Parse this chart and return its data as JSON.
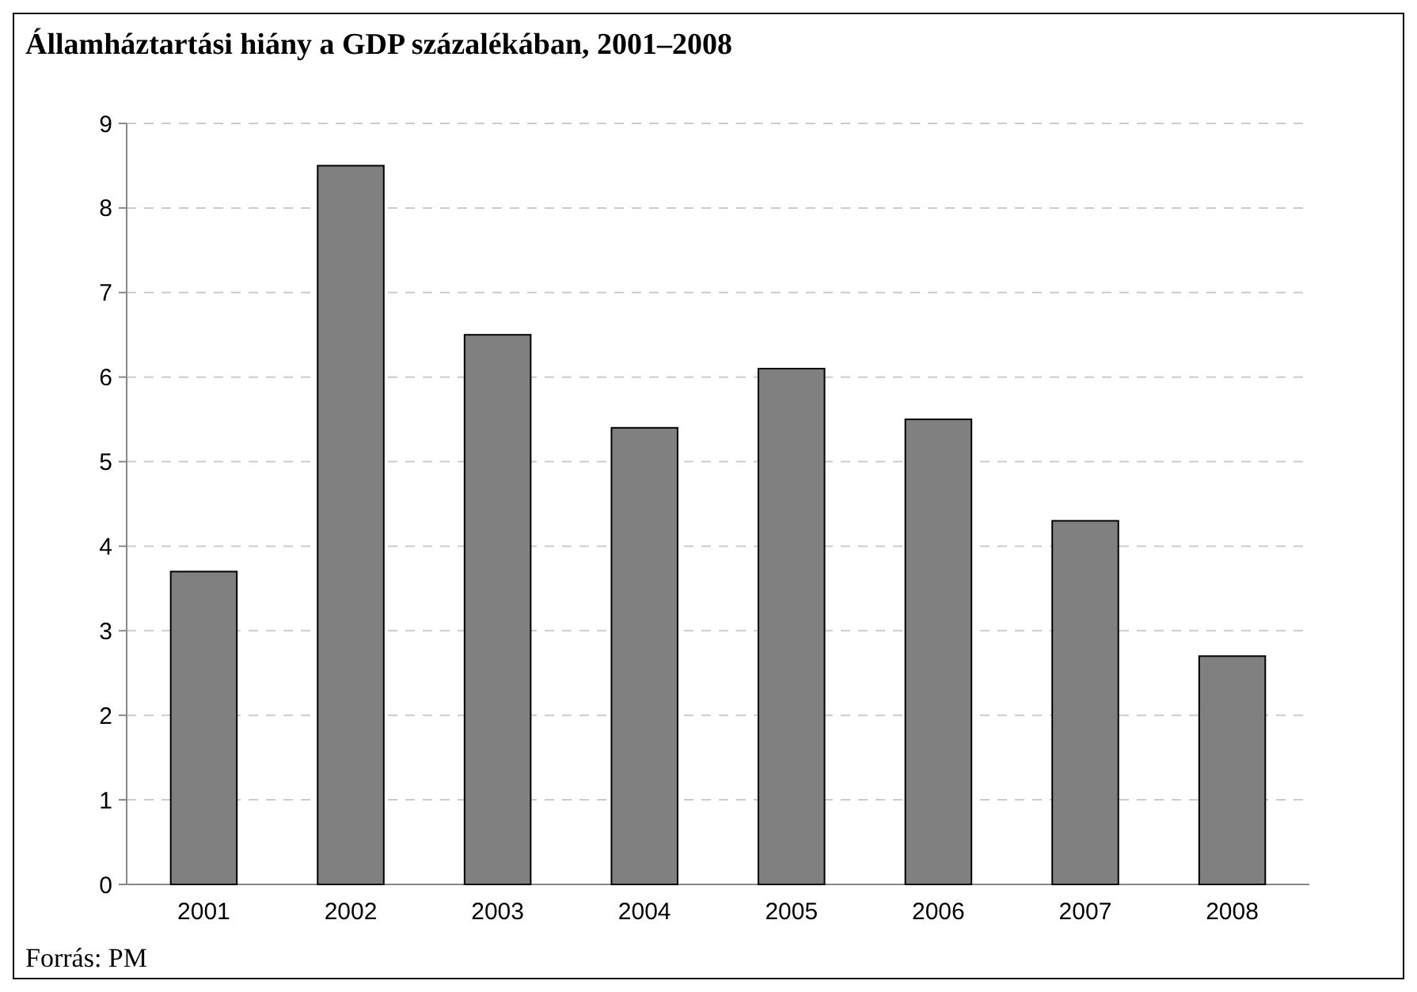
{
  "chart_data": {
    "type": "bar",
    "title": "Államháztartási hiány a GDP százalékában, 2001–2008",
    "categories": [
      "2001",
      "2002",
      "2003",
      "2004",
      "2005",
      "2006",
      "2007",
      "2008"
    ],
    "values": [
      3.7,
      8.5,
      6.5,
      5.4,
      6.1,
      5.5,
      4.3,
      2.7
    ],
    "color": "#808080",
    "ylim": [
      0,
      9
    ],
    "yticks": [
      0,
      1,
      2,
      3,
      4,
      5,
      6,
      7,
      8,
      9
    ],
    "grid": "y",
    "annotations": [
      "Forrás: PM"
    ]
  }
}
